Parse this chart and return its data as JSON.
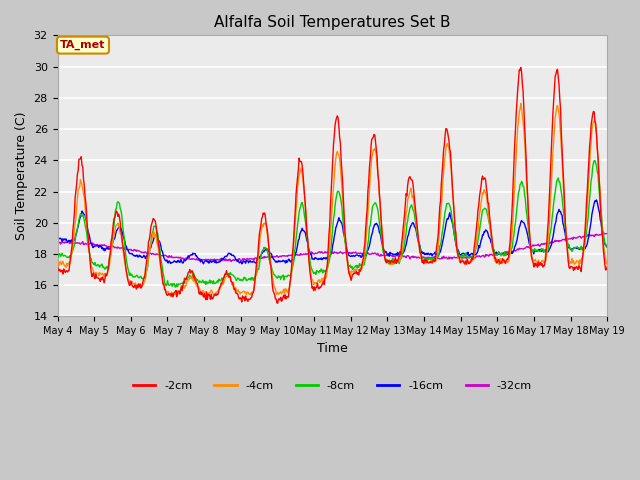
{
  "title": "Alfalfa Soil Temperatures Set B",
  "xlabel": "Time",
  "ylabel": "Soil Temperature (C)",
  "ylim": [
    14,
    32
  ],
  "series_colors": {
    "-2cm": "#FF0000",
    "-4cm": "#FF8C00",
    "-8cm": "#00CC00",
    "-16cm": "#0000FF",
    "-32cm": "#CC00CC"
  },
  "annotation_text": "TA_met",
  "annotation_box_facecolor": "#FFFFCC",
  "annotation_box_edgecolor": "#CC8800",
  "annotation_text_color": "#AA0000",
  "fig_facecolor": "#C8C8C8",
  "ax_facecolor": "#EBEBEB",
  "grid_color": "#FFFFFF",
  "tick_labels": [
    "May 4",
    "May 5",
    "May 6",
    "May 7",
    "May 8",
    "May 9",
    "May 10",
    "May 11",
    "May 12",
    "May 13",
    "May 14",
    "May 15",
    "May 16",
    "May 17",
    "May 18",
    "May 19"
  ],
  "line_width": 1.0
}
